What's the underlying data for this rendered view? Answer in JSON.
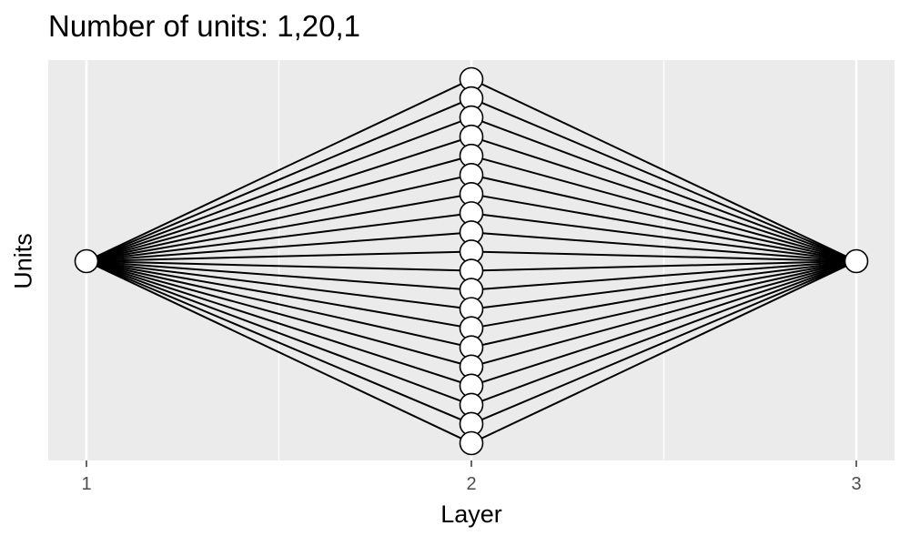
{
  "title": "Number of units: 1,20,1",
  "xlabel": "Layer",
  "ylabel": "Units",
  "chart_data": {
    "type": "network",
    "layers": [
      1,
      2,
      3
    ],
    "units": [
      1,
      20,
      1
    ],
    "x_tick_labels": [
      "1",
      "2",
      "3"
    ],
    "grid": true
  },
  "colors": {
    "panel": "#ebebeb",
    "grid": "#ffffff",
    "edge": "#000000",
    "node_fill": "#ffffff",
    "node_stroke": "#000000"
  }
}
